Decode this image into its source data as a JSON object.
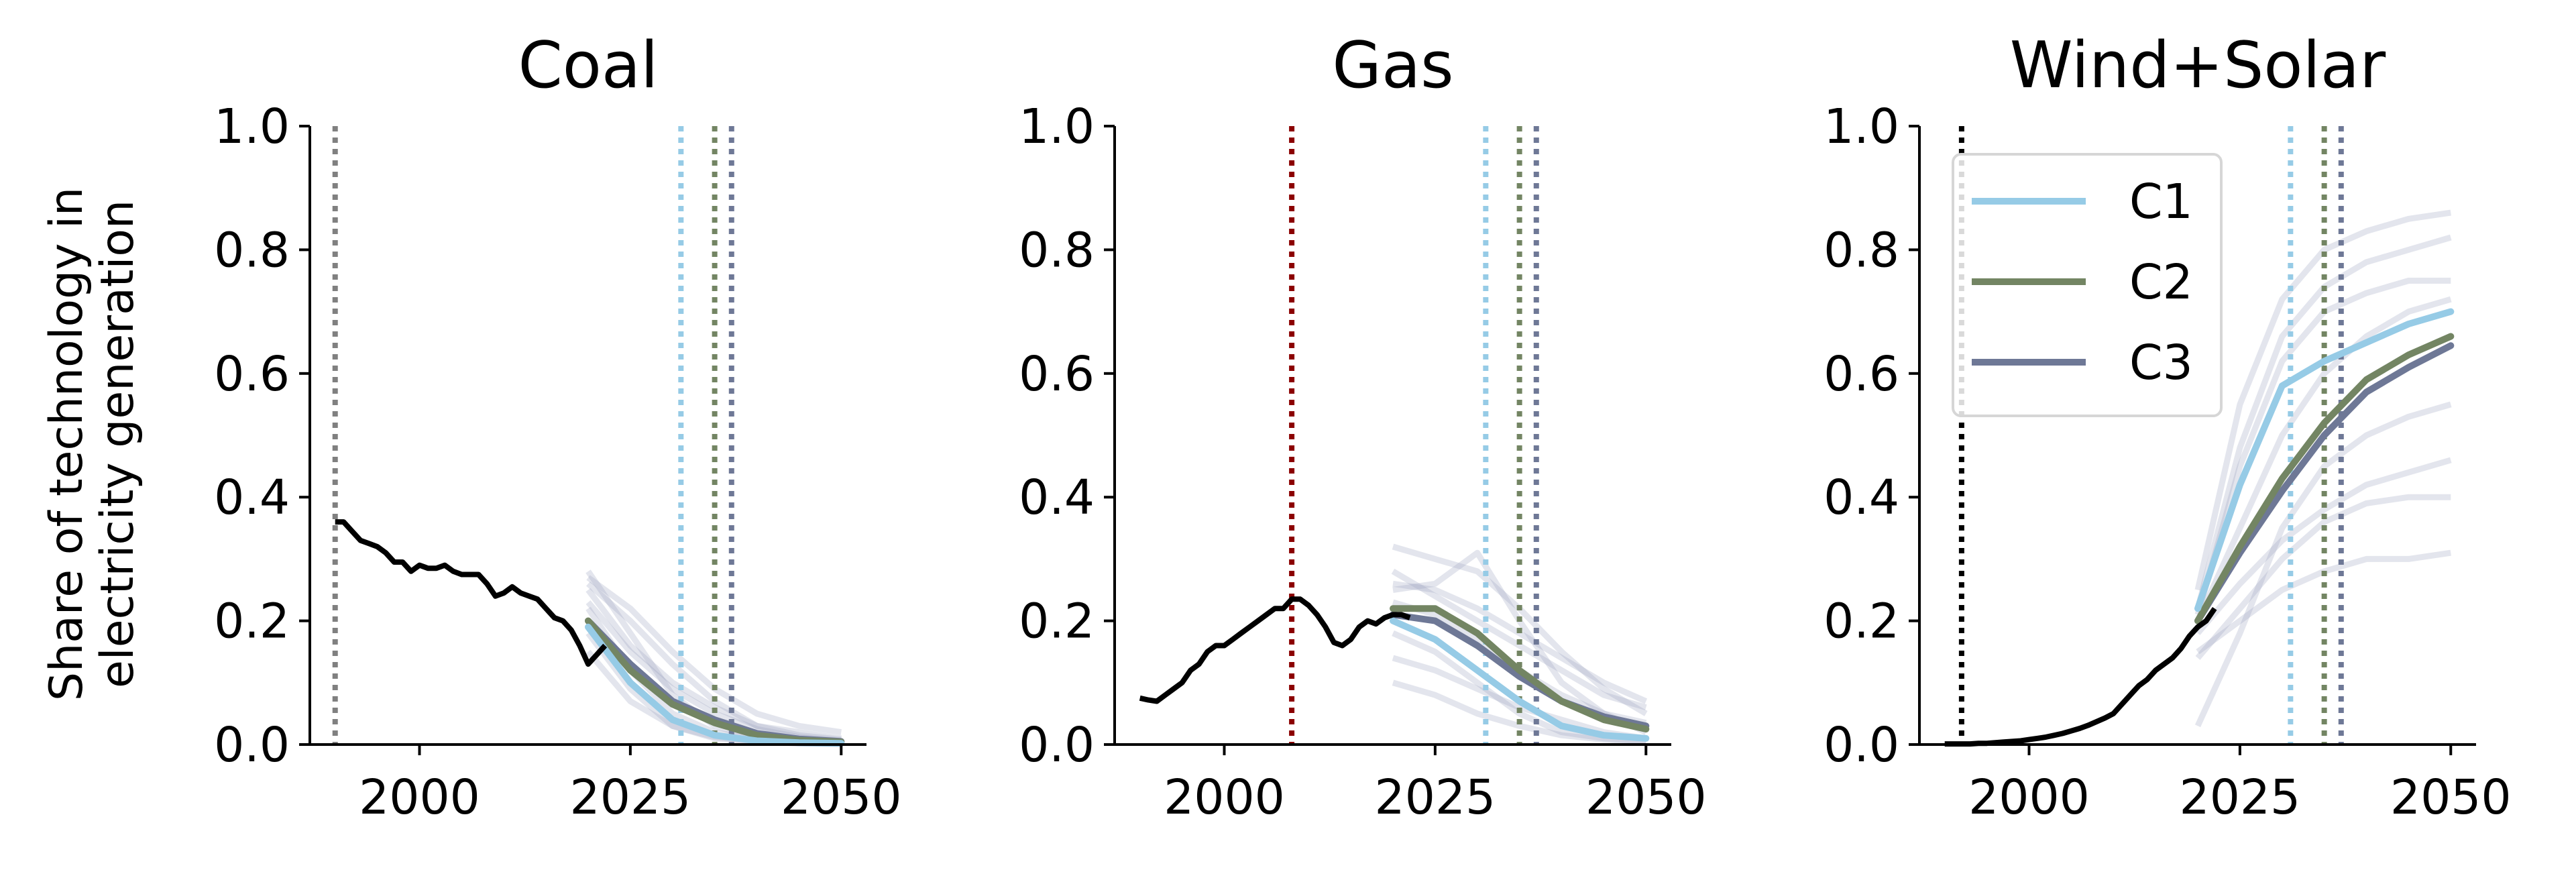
{
  "figure": {
    "ylabel_line1": "Share of technology in",
    "ylabel_line2": "electricity generation"
  },
  "colors": {
    "historical": "#000000",
    "C1": "#96cbe6",
    "C2": "#738563",
    "C3": "#6e7896",
    "ensemble": "#9aa0bd",
    "vline_grey": "#808080",
    "vline_darkred": "#8b0000",
    "vline_black": "#000000"
  },
  "legend": {
    "placement": "upper-left of Wind+Solar panel",
    "items": [
      {
        "label": "C1",
        "color": "#96cbe6"
      },
      {
        "label": "C2",
        "color": "#738563"
      },
      {
        "label": "C3",
        "color": "#6e7896"
      }
    ]
  },
  "chart_data": [
    {
      "type": "line",
      "title": "Coal",
      "xlim": [
        1987,
        2053
      ],
      "ylim": [
        0,
        1
      ],
      "xticks": [
        "2000",
        "2025",
        "2050"
      ],
      "yticks": [
        "0.0",
        "0.2",
        "0.4",
        "0.6",
        "0.8",
        "1.0"
      ],
      "grid": false,
      "historical": {
        "x": [
          1990,
          1991,
          1992,
          1993,
          1994,
          1995,
          1996,
          1997,
          1998,
          1999,
          2000,
          2001,
          2002,
          2003,
          2004,
          2005,
          2006,
          2007,
          2008,
          2009,
          2010,
          2011,
          2012,
          2013,
          2014,
          2015,
          2016,
          2017,
          2018,
          2019,
          2020,
          2021,
          2022
        ],
        "y": [
          0.36,
          0.36,
          0.345,
          0.33,
          0.325,
          0.32,
          0.31,
          0.295,
          0.295,
          0.28,
          0.29,
          0.285,
          0.285,
          0.29,
          0.28,
          0.275,
          0.275,
          0.275,
          0.26,
          0.24,
          0.245,
          0.255,
          0.245,
          0.24,
          0.235,
          0.22,
          0.205,
          0.2,
          0.185,
          0.16,
          0.13,
          0.145,
          0.16
        ]
      },
      "series": [
        {
          "name": "C1",
          "x": [
            2020,
            2025,
            2030,
            2035,
            2040,
            2045,
            2050
          ],
          "y": [
            0.19,
            0.1,
            0.04,
            0.015,
            0.006,
            0.003,
            0.002
          ]
        },
        {
          "name": "C2",
          "x": [
            2020,
            2025,
            2030,
            2035,
            2040,
            2045,
            2050
          ],
          "y": [
            0.2,
            0.12,
            0.065,
            0.035,
            0.015,
            0.007,
            0.004
          ]
        },
        {
          "name": "C3",
          "x": [
            2020,
            2025,
            2030,
            2035,
            2040,
            2045,
            2050
          ],
          "y": [
            0.2,
            0.13,
            0.07,
            0.04,
            0.018,
            0.009,
            0.005
          ]
        }
      ],
      "ensemble": [
        {
          "x": [
            2020,
            2025,
            2030,
            2035,
            2040,
            2045,
            2050
          ],
          "y": [
            0.28,
            0.18,
            0.08,
            0.03,
            0.01,
            0.005,
            0.003
          ]
        },
        {
          "x": [
            2020,
            2025,
            2030,
            2035,
            2040,
            2045,
            2050
          ],
          "y": [
            0.25,
            0.16,
            0.1,
            0.06,
            0.03,
            0.015,
            0.008
          ]
        },
        {
          "x": [
            2020,
            2025,
            2030,
            2035,
            2040,
            2045,
            2050
          ],
          "y": [
            0.22,
            0.12,
            0.05,
            0.02,
            0.008,
            0.004,
            0.002
          ]
        },
        {
          "x": [
            2020,
            2025,
            2030,
            2035,
            2040,
            2045,
            2050
          ],
          "y": [
            0.18,
            0.09,
            0.03,
            0.01,
            0.004,
            0.002,
            0.001
          ]
        },
        {
          "x": [
            2020,
            2025,
            2030,
            2035,
            2040,
            2045,
            2050
          ],
          "y": [
            0.26,
            0.2,
            0.13,
            0.07,
            0.03,
            0.02,
            0.01
          ]
        },
        {
          "x": [
            2020,
            2025,
            2030,
            2035,
            2040,
            2045,
            2050
          ],
          "y": [
            0.15,
            0.07,
            0.03,
            0.012,
            0.005,
            0.002,
            0.001
          ]
        },
        {
          "x": [
            2020,
            2025,
            2030,
            2035,
            2040,
            2045,
            2050
          ],
          "y": [
            0.23,
            0.15,
            0.09,
            0.05,
            0.025,
            0.012,
            0.006
          ]
        },
        {
          "x": [
            2020,
            2025,
            2030,
            2035,
            2040,
            2045,
            2050
          ],
          "y": [
            0.27,
            0.22,
            0.15,
            0.09,
            0.05,
            0.03,
            0.02
          ]
        }
      ],
      "vlines": [
        {
          "x": 1990,
          "color": "#808080"
        },
        {
          "x": 2031,
          "color": "#96cbe6"
        },
        {
          "x": 2035,
          "color": "#738563"
        },
        {
          "x": 2037,
          "color": "#6e7896"
        }
      ]
    },
    {
      "type": "line",
      "title": "Gas",
      "xlim": [
        1987,
        2053
      ],
      "ylim": [
        0,
        1
      ],
      "xticks": [
        "2000",
        "2025",
        "2050"
      ],
      "yticks": [
        "0.0",
        "0.2",
        "0.4",
        "0.6",
        "0.8",
        "1.0"
      ],
      "grid": false,
      "historical": {
        "x": [
          1990,
          1991,
          1992,
          1993,
          1994,
          1995,
          1996,
          1997,
          1998,
          1999,
          2000,
          2001,
          2002,
          2003,
          2004,
          2005,
          2006,
          2007,
          2008,
          2009,
          2010,
          2011,
          2012,
          2013,
          2014,
          2015,
          2016,
          2017,
          2018,
          2019,
          2020,
          2021,
          2022
        ],
        "y": [
          0.075,
          0.072,
          0.07,
          0.08,
          0.09,
          0.1,
          0.12,
          0.13,
          0.15,
          0.16,
          0.16,
          0.17,
          0.18,
          0.19,
          0.2,
          0.21,
          0.22,
          0.22,
          0.235,
          0.235,
          0.225,
          0.21,
          0.19,
          0.165,
          0.16,
          0.17,
          0.19,
          0.2,
          0.195,
          0.205,
          0.21,
          0.21,
          0.205
        ]
      },
      "series": [
        {
          "name": "C1",
          "x": [
            2020,
            2025,
            2030,
            2035,
            2040,
            2045,
            2050
          ],
          "y": [
            0.2,
            0.17,
            0.12,
            0.07,
            0.03,
            0.015,
            0.01
          ]
        },
        {
          "name": "C2",
          "x": [
            2020,
            2025,
            2030,
            2035,
            2040,
            2045,
            2050
          ],
          "y": [
            0.22,
            0.22,
            0.18,
            0.12,
            0.07,
            0.04,
            0.025
          ]
        },
        {
          "name": "C3",
          "x": [
            2020,
            2025,
            2030,
            2035,
            2040,
            2045,
            2050
          ],
          "y": [
            0.21,
            0.2,
            0.16,
            0.11,
            0.07,
            0.045,
            0.03
          ]
        }
      ],
      "ensemble": [
        {
          "x": [
            2020,
            2025,
            2030,
            2035,
            2040,
            2045,
            2050
          ],
          "y": [
            0.32,
            0.3,
            0.28,
            0.22,
            0.15,
            0.09,
            0.05
          ]
        },
        {
          "x": [
            2020,
            2025,
            2030,
            2035,
            2040,
            2045,
            2050
          ],
          "y": [
            0.25,
            0.26,
            0.31,
            0.2,
            0.1,
            0.05,
            0.02
          ]
        },
        {
          "x": [
            2020,
            2025,
            2030,
            2035,
            2040,
            2045,
            2050
          ],
          "y": [
            0.18,
            0.15,
            0.1,
            0.05,
            0.02,
            0.01,
            0.005
          ]
        },
        {
          "x": [
            2020,
            2025,
            2030,
            2035,
            2040,
            2045,
            2050
          ],
          "y": [
            0.14,
            0.12,
            0.09,
            0.06,
            0.04,
            0.02,
            0.01
          ]
        },
        {
          "x": [
            2020,
            2025,
            2030,
            2035,
            2040,
            2045,
            2050
          ],
          "y": [
            0.28,
            0.24,
            0.2,
            0.16,
            0.12,
            0.08,
            0.06
          ]
        },
        {
          "x": [
            2020,
            2025,
            2030,
            2035,
            2040,
            2045,
            2050
          ],
          "y": [
            0.1,
            0.08,
            0.05,
            0.03,
            0.015,
            0.008,
            0.004
          ]
        },
        {
          "x": [
            2020,
            2025,
            2030,
            2035,
            2040,
            2045,
            2050
          ],
          "y": [
            0.23,
            0.21,
            0.17,
            0.12,
            0.08,
            0.05,
            0.035
          ]
        },
        {
          "x": [
            2020,
            2025,
            2030,
            2035,
            2040,
            2045,
            2050
          ],
          "y": [
            0.26,
            0.25,
            0.22,
            0.18,
            0.14,
            0.1,
            0.07
          ]
        }
      ],
      "vlines": [
        {
          "x": 2008,
          "color": "#8b0000"
        },
        {
          "x": 2031,
          "color": "#96cbe6"
        },
        {
          "x": 2035,
          "color": "#738563"
        },
        {
          "x": 2037,
          "color": "#6e7896"
        }
      ]
    },
    {
      "type": "line",
      "title": "Wind+Solar",
      "xlim": [
        1987,
        2053
      ],
      "ylim": [
        0,
        1
      ],
      "xticks": [
        "2000",
        "2025",
        "2050"
      ],
      "yticks": [
        "0.0",
        "0.2",
        "0.4",
        "0.6",
        "0.8",
        "1.0"
      ],
      "grid": false,
      "historical": {
        "x": [
          1990,
          1991,
          1992,
          1993,
          1994,
          1995,
          1996,
          1997,
          1998,
          1999,
          2000,
          2001,
          2002,
          2003,
          2004,
          2005,
          2006,
          2007,
          2008,
          2009,
          2010,
          2011,
          2012,
          2013,
          2014,
          2015,
          2016,
          2017,
          2018,
          2019,
          2020,
          2021,
          2022
        ],
        "y": [
          0.001,
          0.001,
          0.001,
          0.001,
          0.002,
          0.002,
          0.003,
          0.004,
          0.005,
          0.006,
          0.008,
          0.01,
          0.012,
          0.015,
          0.018,
          0.022,
          0.026,
          0.031,
          0.037,
          0.043,
          0.05,
          0.065,
          0.08,
          0.095,
          0.105,
          0.12,
          0.13,
          0.14,
          0.155,
          0.175,
          0.19,
          0.2,
          0.22
        ]
      },
      "series": [
        {
          "name": "C1",
          "x": [
            2020,
            2025,
            2030,
            2035,
            2040,
            2045,
            2050
          ],
          "y": [
            0.22,
            0.42,
            0.58,
            0.62,
            0.65,
            0.68,
            0.7
          ]
        },
        {
          "name": "C2",
          "x": [
            2020,
            2025,
            2030,
            2035,
            2040,
            2045,
            2050
          ],
          "y": [
            0.2,
            0.32,
            0.43,
            0.52,
            0.59,
            0.63,
            0.66
          ]
        },
        {
          "name": "C3",
          "x": [
            2020,
            2025,
            2030,
            2035,
            2040,
            2045,
            2050
          ],
          "y": [
            0.2,
            0.31,
            0.41,
            0.5,
            0.57,
            0.61,
            0.645
          ]
        }
      ],
      "ensemble": [
        {
          "x": [
            2020,
            2025,
            2030,
            2035,
            2040,
            2045,
            2050
          ],
          "y": [
            0.25,
            0.55,
            0.72,
            0.8,
            0.83,
            0.85,
            0.86
          ]
        },
        {
          "x": [
            2020,
            2025,
            2030,
            2035,
            2040,
            2045,
            2050
          ],
          "y": [
            0.22,
            0.48,
            0.66,
            0.74,
            0.78,
            0.8,
            0.82
          ]
        },
        {
          "x": [
            2020,
            2025,
            2030,
            2035,
            2040,
            2045,
            2050
          ],
          "y": [
            0.15,
            0.2,
            0.25,
            0.28,
            0.3,
            0.3,
            0.31
          ]
        },
        {
          "x": [
            2020,
            2025,
            2030,
            2035,
            2040,
            2045,
            2050
          ],
          "y": [
            0.03,
            0.18,
            0.35,
            0.45,
            0.5,
            0.53,
            0.55
          ]
        },
        {
          "x": [
            2020,
            2025,
            2030,
            2035,
            2040,
            2045,
            2050
          ],
          "y": [
            0.2,
            0.35,
            0.5,
            0.6,
            0.66,
            0.7,
            0.72
          ]
        },
        {
          "x": [
            2020,
            2025,
            2030,
            2035,
            2040,
            2045,
            2050
          ],
          "y": [
            0.18,
            0.26,
            0.33,
            0.38,
            0.42,
            0.44,
            0.46
          ]
        },
        {
          "x": [
            2020,
            2025,
            2030,
            2035,
            2040,
            2045,
            2050
          ],
          "y": [
            0.21,
            0.45,
            0.62,
            0.7,
            0.73,
            0.75,
            0.75
          ]
        },
        {
          "x": [
            2020,
            2025,
            2030,
            2035,
            2040,
            2045,
            2050
          ],
          "y": [
            0.14,
            0.22,
            0.3,
            0.36,
            0.39,
            0.4,
            0.4
          ]
        }
      ],
      "vlines": [
        {
          "x": 1992,
          "color": "#000000"
        },
        {
          "x": 2031,
          "color": "#96cbe6"
        },
        {
          "x": 2035,
          "color": "#738563"
        },
        {
          "x": 2037,
          "color": "#6e7896"
        }
      ]
    }
  ]
}
